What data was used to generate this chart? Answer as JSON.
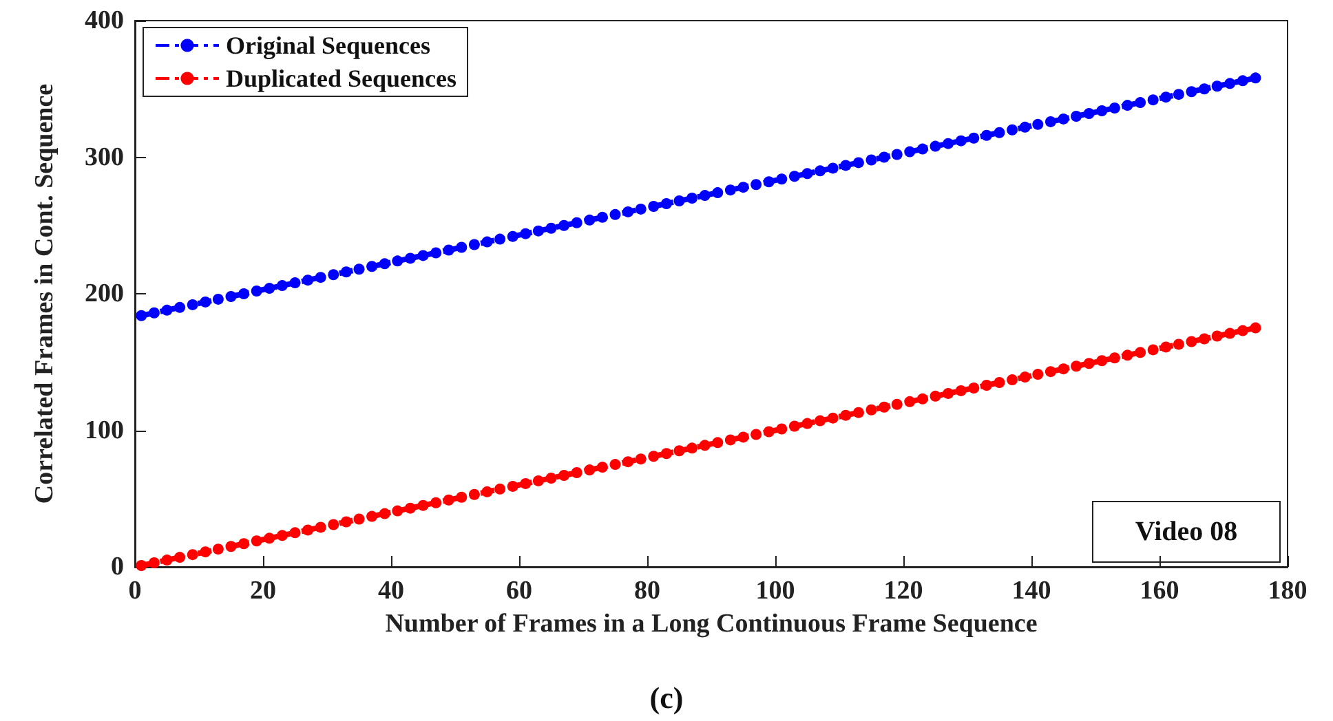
{
  "chart_data": {
    "type": "line",
    "xlabel": "Number of Frames in a Long Continuous Frame Sequence",
    "ylabel": "Correlated Frames in Cont. Sequence",
    "annotations": [
      "Video 08",
      "(c)"
    ],
    "x": [
      1,
      3,
      5,
      7,
      9,
      11,
      13,
      15,
      17,
      19,
      21,
      23,
      25,
      27,
      29,
      31,
      33,
      35,
      37,
      39,
      41,
      43,
      45,
      47,
      49,
      51,
      53,
      55,
      57,
      59,
      61,
      63,
      65,
      67,
      69,
      71,
      73,
      75,
      77,
      79,
      81,
      83,
      85,
      87,
      89,
      91,
      93,
      95,
      97,
      99,
      101,
      103,
      105,
      107,
      109,
      111,
      113,
      115,
      117,
      119,
      121,
      123,
      125,
      127,
      129,
      131,
      133,
      135,
      137,
      139,
      141,
      143,
      145,
      147,
      149,
      151,
      153,
      155,
      157,
      159,
      161,
      163,
      165,
      167,
      169,
      171,
      173,
      175
    ],
    "series": [
      {
        "name": "Original Sequences",
        "color": "#0000ff",
        "values": [
          184,
          186,
          188,
          190,
          192,
          194,
          196,
          198,
          200,
          202,
          204,
          206,
          208,
          210,
          212,
          214,
          216,
          218,
          220,
          222,
          224,
          226,
          228,
          230,
          232,
          234,
          236,
          238,
          240,
          242,
          244,
          246,
          248,
          250,
          252,
          254,
          256,
          258,
          260,
          262,
          264,
          266,
          268,
          270,
          272,
          274,
          276,
          278,
          280,
          282,
          284,
          286,
          288,
          290,
          292,
          294,
          296,
          298,
          300,
          302,
          304,
          306,
          308,
          310,
          312,
          314,
          316,
          318,
          320,
          322,
          324,
          326,
          328,
          330,
          332,
          334,
          336,
          338,
          340,
          342,
          344,
          346,
          348,
          350,
          352,
          354,
          356,
          358
        ]
      },
      {
        "name": "Duplicated Sequences",
        "color": "#ff0000",
        "values": [
          1,
          3,
          5,
          7,
          9,
          11,
          13,
          15,
          17,
          19,
          21,
          23,
          25,
          27,
          29,
          31,
          33,
          35,
          37,
          39,
          41,
          43,
          45,
          47,
          49,
          51,
          53,
          55,
          57,
          59,
          61,
          63,
          65,
          67,
          69,
          71,
          73,
          75,
          77,
          79,
          81,
          83,
          85,
          87,
          89,
          91,
          93,
          95,
          97,
          99,
          101,
          103,
          105,
          107,
          109,
          111,
          113,
          115,
          117,
          119,
          121,
          123,
          125,
          127,
          129,
          131,
          133,
          135,
          137,
          139,
          141,
          143,
          145,
          147,
          149,
          151,
          153,
          155,
          157,
          159,
          161,
          163,
          165,
          167,
          169,
          171,
          173,
          175
        ]
      }
    ],
    "xlim": [
      0,
      180
    ],
    "xticks": [
      0,
      20,
      40,
      60,
      80,
      100,
      120,
      140,
      160,
      180
    ],
    "ylim": [
      0,
      400
    ],
    "yticks": [
      0,
      100,
      200,
      300,
      400
    ],
    "grid": false,
    "legend": "top left",
    "marker": "circle",
    "line_style": "dashed"
  }
}
